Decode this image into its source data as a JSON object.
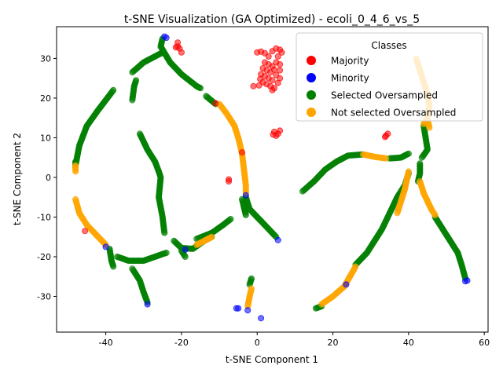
{
  "chart_data": {
    "type": "scatter",
    "title": "t-SNE Visualization (GA Optimized) - ecoli_0_4_6_vs_5",
    "xlabel": "t-SNE Component 1",
    "ylabel": "t-SNE Component 2",
    "xlim": [
      -53,
      61
    ],
    "ylim": [
      -39,
      38
    ],
    "xticks": [
      -40,
      -20,
      0,
      20,
      40,
      60
    ],
    "yticks": [
      -30,
      -20,
      -10,
      0,
      10,
      20,
      30
    ],
    "grid": false,
    "legend": {
      "title": "Classes",
      "position": "top-right"
    },
    "series": [
      {
        "name": "Majority",
        "color": "#ff0000",
        "points": [
          [
            -21,
            34
          ],
          [
            -21,
            33
          ],
          [
            -20.5,
            32.5
          ],
          [
            -20,
            31.5
          ],
          [
            -21.5,
            32.8
          ],
          [
            0,
            31.5
          ],
          [
            1,
            31.7
          ],
          [
            2,
            31.3
          ],
          [
            3,
            30.5
          ],
          [
            4,
            31.8
          ],
          [
            5,
            32.5
          ],
          [
            6,
            32.2
          ],
          [
            6.5,
            31.5
          ],
          [
            5.5,
            30.5
          ],
          [
            2,
            29
          ],
          [
            3,
            28.5
          ],
          [
            4,
            28
          ],
          [
            5,
            29
          ],
          [
            6,
            28.5
          ],
          [
            1.5,
            27.5
          ],
          [
            2.5,
            27
          ],
          [
            3.5,
            26.5
          ],
          [
            4.5,
            27.2
          ],
          [
            6,
            27
          ],
          [
            1,
            26
          ],
          [
            2,
            25.5
          ],
          [
            3,
            25
          ],
          [
            4,
            24.5
          ],
          [
            5,
            25.8
          ],
          [
            6,
            25
          ],
          [
            1.5,
            24
          ],
          [
            2.5,
            23.5
          ],
          [
            3.5,
            23
          ],
          [
            4.5,
            22.5
          ],
          [
            0.5,
            23.2
          ],
          [
            -1,
            23
          ],
          [
            4,
            22
          ],
          [
            5.5,
            23.8
          ],
          [
            0.8,
            24.8
          ],
          [
            4.5,
            11.5
          ],
          [
            5.5,
            11
          ],
          [
            5,
            10.5
          ],
          [
            6,
            11.8
          ],
          [
            4.2,
            10.8
          ],
          [
            34,
            10.5
          ],
          [
            34.5,
            11
          ],
          [
            33.8,
            10.2
          ],
          [
            -11,
            18.7
          ],
          [
            -4,
            6.3
          ],
          [
            -7.5,
            -0.5
          ],
          [
            -7.5,
            -1
          ],
          [
            -45.5,
            -13.5
          ]
        ]
      },
      {
        "name": "Minority",
        "color": "#0000ff",
        "points": [
          [
            -24.5,
            35.5
          ],
          [
            -24,
            35.2
          ],
          [
            -3,
            -4.5
          ],
          [
            5.5,
            -15.8
          ],
          [
            -19,
            -18.2
          ],
          [
            -40,
            -17.5
          ],
          [
            -29,
            -32
          ],
          [
            -5.5,
            -33
          ],
          [
            -5,
            -33
          ],
          [
            -2.5,
            -33.5
          ],
          [
            1,
            -35.5
          ],
          [
            23.5,
            -27
          ],
          [
            55,
            -26.2
          ],
          [
            55.5,
            -26
          ]
        ]
      },
      {
        "name": "Selected Oversampled",
        "color": "#008000",
        "curves": [
          [
            [
              -48,
              3
            ],
            [
              -47,
              8
            ],
            [
              -45,
              13
            ],
            [
              -42,
              17
            ],
            [
              -38,
              22
            ]
          ],
          [
            [
              -33,
              19.5
            ],
            [
              -32.5,
              23
            ],
            [
              -32,
              24.5
            ]
          ],
          [
            [
              -33,
              26.5
            ],
            [
              -30,
              29
            ],
            [
              -27,
              30.5
            ],
            [
              -25,
              31.5
            ]
          ],
          [
            [
              -25,
              35
            ],
            [
              -25.5,
              33
            ],
            [
              -23,
              29
            ],
            [
              -20,
              26
            ],
            [
              -16,
              23
            ],
            [
              -15,
              22.5
            ]
          ],
          [
            [
              -13.5,
              20.5
            ],
            [
              -11,
              18.5
            ]
          ],
          [
            [
              -31,
              11
            ],
            [
              -29,
              7
            ],
            [
              -27,
              4
            ],
            [
              -26,
              1.5
            ],
            [
              -25.5,
              0
            ],
            [
              -26,
              -5
            ],
            [
              -25,
              -10
            ],
            [
              -24.5,
              -14
            ]
          ],
          [
            [
              -22,
              -16
            ],
            [
              -20,
              -17.8
            ],
            [
              -17,
              -18
            ],
            [
              -14,
              -16
            ],
            [
              -12,
              -15
            ]
          ],
          [
            [
              -16,
              -15.5
            ],
            [
              -12,
              -14
            ],
            [
              -9,
              -12
            ],
            [
              -7,
              -10.5
            ]
          ],
          [
            [
              -20,
              -18.5
            ],
            [
              -19,
              -20
            ]
          ],
          [
            [
              -48,
              4
            ],
            [
              -48,
              2.5
            ]
          ],
          [
            [
              -39,
              -18
            ],
            [
              -38.5,
              -21
            ],
            [
              -38,
              -22.5
            ]
          ],
          [
            [
              -37,
              -20
            ],
            [
              -34,
              -21
            ],
            [
              -30,
              -21
            ],
            [
              -27,
              -20
            ],
            [
              -24,
              -19
            ]
          ],
          [
            [
              -33,
              -23
            ],
            [
              -31,
              -26
            ],
            [
              -30,
              -29
            ],
            [
              -29,
              -31.5
            ]
          ],
          [
            [
              -3,
              -5
            ],
            [
              -2,
              -8
            ],
            [
              0,
              -10
            ],
            [
              2,
              -12
            ],
            [
              5,
              -15
            ]
          ],
          [
            [
              -3,
              -9.5
            ],
            [
              -4,
              -5.5
            ]
          ],
          [
            [
              -1.5,
              -25.5
            ],
            [
              -2,
              -27
            ]
          ],
          [
            [
              12,
              -3.5
            ],
            [
              15,
              -1
            ],
            [
              18,
              2
            ],
            [
              21,
              4
            ],
            [
              24,
              5.5
            ],
            [
              28,
              5.8
            ]
          ],
          [
            [
              15.5,
              -33
            ],
            [
              17,
              -32.5
            ]
          ],
          [
            [
              26,
              -22
            ],
            [
              29,
              -19
            ],
            [
              31,
              -16
            ],
            [
              33,
              -13
            ],
            [
              35,
              -9
            ],
            [
              37,
              -5
            ],
            [
              39,
              -2
            ],
            [
              40,
              1
            ]
          ],
          [
            [
              35,
              4.8
            ],
            [
              38,
              5
            ],
            [
              40,
              6
            ]
          ],
          [
            [
              43,
              3.5
            ],
            [
              43,
              1
            ],
            [
              42.5,
              -1
            ]
          ],
          [
            [
              44,
              13
            ],
            [
              44.5,
              10
            ],
            [
              45,
              7
            ],
            [
              43.5,
              5
            ]
          ],
          [
            [
              47,
              -10
            ],
            [
              49,
              -13
            ],
            [
              51,
              -16
            ],
            [
              53,
              -19
            ],
            [
              54,
              -22
            ],
            [
              55,
              -25.5
            ]
          ]
        ]
      },
      {
        "name": "Not selected Oversampled",
        "color": "#ffa500",
        "curves": [
          [
            [
              -48,
              -5.5
            ],
            [
              -47,
              -9
            ],
            [
              -45,
              -12
            ],
            [
              -42,
              -15
            ],
            [
              -40,
              -17
            ]
          ],
          [
            [
              -48,
              1.5
            ],
            [
              -48,
              3
            ]
          ],
          [
            [
              -10,
              18.5
            ],
            [
              -8,
              16
            ],
            [
              -6,
              13
            ],
            [
              -5,
              10
            ],
            [
              -4,
              6
            ],
            [
              -3.5,
              2
            ],
            [
              -3,
              -2
            ],
            [
              -3,
              -4
            ]
          ],
          [
            [
              -12,
              -15
            ],
            [
              -14,
              -16
            ],
            [
              -16,
              -17
            ]
          ],
          [
            [
              -1.5,
              -28
            ],
            [
              -2,
              -30
            ],
            [
              -2.5,
              -32.5
            ]
          ],
          [
            [
              17,
              -32
            ],
            [
              20,
              -30
            ],
            [
              23,
              -27.5
            ],
            [
              26,
              -22.5
            ]
          ],
          [
            [
              28,
              5.8
            ],
            [
              31,
              5.2
            ],
            [
              34,
              4.8
            ]
          ],
          [
            [
              40,
              1.5
            ],
            [
              39,
              -3
            ],
            [
              38,
              -6
            ],
            [
              37,
              -9
            ]
          ],
          [
            [
              42,
              30
            ],
            [
              43,
              27
            ],
            [
              44,
              24
            ],
            [
              45,
              21
            ],
            [
              45.5,
              18
            ],
            [
              45,
              15
            ],
            [
              44,
              13.5
            ]
          ],
          [
            [
              43,
              -1
            ],
            [
              44,
              -4
            ],
            [
              45,
              -6
            ],
            [
              46,
              -8
            ],
            [
              47,
              -9.5
            ]
          ],
          [
            [
              45,
              14.5
            ],
            [
              45.5,
              12.5
            ]
          ]
        ]
      }
    ]
  }
}
